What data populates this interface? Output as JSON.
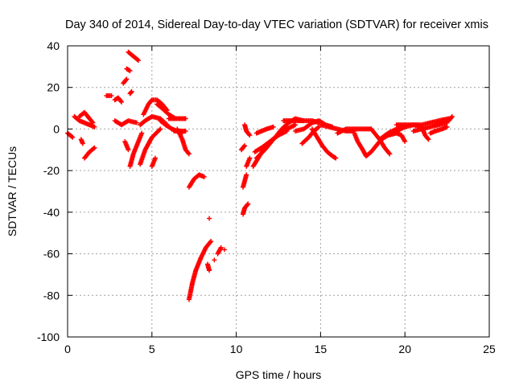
{
  "colors": {
    "series": "#ff0000",
    "grid": "#a0a0a0",
    "axis": "#000000"
  },
  "chart_data": {
    "type": "scatter",
    "title": "Day 340 of 2014, Sidereal Day-to-day VTEC variation (SDTVAR) for receiver xmis",
    "xlabel": "GPS time / hours",
    "ylabel": "SDTVAR / TECUs",
    "xlim": [
      0,
      25
    ],
    "ylim": [
      -100,
      40
    ],
    "xticks": [
      0,
      5,
      10,
      15,
      20,
      25
    ],
    "yticks": [
      -100,
      -80,
      -60,
      -40,
      -20,
      0,
      20,
      40
    ],
    "grid": true,
    "marker": "+",
    "series": [
      {
        "name": "SDTVAR",
        "arcs": [
          [
            [
              0.0,
              -2
            ],
            [
              0.15,
              -3
            ],
            [
              0.3,
              -4
            ]
          ],
          [
            [
              0.4,
              6
            ],
            [
              0.7,
              4
            ],
            [
              1.0,
              3
            ],
            [
              1.3,
              2
            ],
            [
              1.6,
              1
            ]
          ],
          [
            [
              0.7,
              6
            ],
            [
              1.0,
              8
            ],
            [
              1.2,
              6
            ],
            [
              1.5,
              3
            ]
          ],
          [
            [
              0.8,
              -5
            ],
            [
              0.9,
              -7
            ]
          ],
          [
            [
              1.0,
              -14
            ],
            [
              1.3,
              -11
            ],
            [
              1.6,
              -9
            ]
          ],
          [
            [
              2.3,
              16
            ],
            [
              2.6,
              16
            ]
          ],
          [
            [
              2.8,
              14
            ],
            [
              3.0,
              15
            ],
            [
              3.2,
              13
            ]
          ],
          [
            [
              2.8,
              4
            ],
            [
              3.2,
              2
            ],
            [
              3.6,
              4
            ],
            [
              4.1,
              3
            ]
          ],
          [
            [
              3.3,
              22
            ],
            [
              3.5,
              24
            ]
          ],
          [
            [
              3.5,
              29
            ],
            [
              3.7,
              28
            ]
          ],
          [
            [
              3.6,
              37
            ],
            [
              3.9,
              35
            ],
            [
              4.2,
              33
            ]
          ],
          [
            [
              3.7,
              17
            ],
            [
              3.8,
              18
            ]
          ],
          [
            [
              3.4,
              -6
            ],
            [
              3.6,
              -10
            ]
          ],
          [
            [
              3.7,
              -18
            ],
            [
              3.9,
              -12
            ],
            [
              4.2,
              -6
            ],
            [
              4.4,
              -2
            ]
          ],
          [
            [
              4.3,
              -17
            ],
            [
              4.6,
              -10
            ],
            [
              5.0,
              -4
            ],
            [
              5.5,
              0
            ]
          ],
          [
            [
              4.3,
              2
            ],
            [
              4.6,
              4
            ],
            [
              5.0,
              6
            ],
            [
              5.5,
              5
            ],
            [
              5.9,
              2
            ]
          ],
          [
            [
              4.5,
              7
            ],
            [
              4.8,
              12
            ],
            [
              5.0,
              14
            ],
            [
              5.3,
              14
            ],
            [
              5.6,
              12
            ],
            [
              5.9,
              9
            ]
          ],
          [
            [
              5.0,
              -18
            ],
            [
              5.2,
              -14
            ]
          ],
          [
            [
              5.3,
              12
            ],
            [
              5.6,
              10
            ],
            [
              6.0,
              7
            ],
            [
              6.4,
              5
            ]
          ],
          [
            [
              5.5,
              4
            ],
            [
              5.8,
              2
            ],
            [
              6.2,
              0
            ],
            [
              6.5,
              -1
            ],
            [
              6.8,
              -2
            ]
          ],
          [
            [
              6.0,
              5
            ],
            [
              6.4,
              5
            ],
            [
              6.8,
              5
            ],
            [
              7.0,
              5
            ]
          ],
          [
            [
              6.5,
              0
            ],
            [
              6.8,
              -5
            ],
            [
              7.0,
              -10
            ],
            [
              7.2,
              -12
            ]
          ],
          [
            [
              6.3,
              -1
            ],
            [
              6.6,
              -1
            ],
            [
              6.8,
              -1
            ],
            [
              7.0,
              -1
            ]
          ],
          [
            [
              7.2,
              -28
            ],
            [
              7.5,
              -24
            ],
            [
              7.8,
              -22
            ],
            [
              8.1,
              -23
            ]
          ],
          [
            [
              7.2,
              -82
            ],
            [
              7.4,
              -74
            ],
            [
              7.6,
              -68
            ],
            [
              7.9,
              -62
            ],
            [
              8.2,
              -57
            ],
            [
              8.5,
              -54
            ]
          ],
          [
            [
              8.3,
              -65
            ],
            [
              8.4,
              -68
            ]
          ],
          [
            [
              8.4,
              -43
            ]
          ],
          [
            [
              8.7,
              -63
            ]
          ],
          [
            [
              8.9,
              -60
            ],
            [
              9.1,
              -57
            ]
          ],
          [
            [
              9.3,
              -58
            ]
          ],
          [
            [
              10.3,
              -10
            ],
            [
              10.5,
              -8
            ]
          ],
          [
            [
              10.4,
              -41
            ],
            [
              10.5,
              -38
            ],
            [
              10.7,
              -36
            ]
          ],
          [
            [
              10.4,
              -28
            ],
            [
              10.6,
              -22
            ]
          ],
          [
            [
              10.5,
              2
            ],
            [
              10.6,
              -1
            ],
            [
              10.8,
              -3
            ]
          ],
          [
            [
              10.6,
              -18
            ],
            [
              10.8,
              -14
            ]
          ],
          [
            [
              11.0,
              -18
            ],
            [
              11.3,
              -14
            ],
            [
              11.6,
              -10
            ],
            [
              12.0,
              -6
            ],
            [
              12.5,
              -3
            ],
            [
              13.0,
              -1
            ]
          ],
          [
            [
              11.1,
              -11
            ],
            [
              11.5,
              -9
            ],
            [
              12.0,
              -6
            ],
            [
              12.5,
              -3
            ],
            [
              13.0,
              0
            ],
            [
              13.5,
              2
            ]
          ],
          [
            [
              11.2,
              -14
            ],
            [
              11.7,
              -10
            ],
            [
              12.2,
              -5
            ],
            [
              12.7,
              0
            ],
            [
              13.1,
              3
            ],
            [
              13.5,
              5
            ],
            [
              14.0,
              4
            ]
          ],
          [
            [
              11.2,
              -2
            ],
            [
              11.5,
              -1
            ],
            [
              11.8,
              0
            ],
            [
              12.2,
              1
            ]
          ],
          [
            [
              12.8,
              4
            ],
            [
              13.2,
              4
            ],
            [
              13.6,
              4
            ],
            [
              14.0,
              4
            ],
            [
              14.5,
              4
            ],
            [
              14.9,
              3
            ]
          ],
          [
            [
              13.5,
              -1
            ],
            [
              14.0,
              0
            ],
            [
              14.5,
              3
            ],
            [
              14.9,
              4
            ],
            [
              15.3,
              2
            ],
            [
              15.7,
              1
            ]
          ],
          [
            [
              13.9,
              -7
            ],
            [
              14.3,
              -4
            ],
            [
              14.6,
              -1
            ],
            [
              14.9,
              1
            ]
          ],
          [
            [
              14.5,
              0
            ],
            [
              14.8,
              -4
            ],
            [
              15.1,
              -8
            ],
            [
              15.4,
              -11
            ],
            [
              15.7,
              -13
            ],
            [
              15.9,
              -14
            ]
          ],
          [
            [
              15.0,
              2
            ],
            [
              15.5,
              1
            ],
            [
              16.0,
              0
            ],
            [
              16.5,
              -1
            ],
            [
              17.0,
              -1
            ]
          ],
          [
            [
              16.0,
              -2
            ],
            [
              16.5,
              0
            ],
            [
              17.0,
              0
            ],
            [
              17.5,
              0
            ],
            [
              18.0,
              0
            ]
          ],
          [
            [
              17.0,
              -2
            ],
            [
              17.2,
              -6
            ],
            [
              17.5,
              -10
            ],
            [
              17.7,
              -13
            ]
          ],
          [
            [
              17.7,
              -13
            ],
            [
              18.0,
              -11
            ],
            [
              18.3,
              -8
            ],
            [
              18.6,
              -5
            ],
            [
              19.0,
              -3
            ],
            [
              19.5,
              -1
            ],
            [
              20.0,
              1
            ]
          ],
          [
            [
              18.0,
              0
            ],
            [
              18.5,
              -5
            ],
            [
              18.8,
              -9
            ],
            [
              19.1,
              -12
            ]
          ],
          [
            [
              18.5,
              -5
            ],
            [
              19.0,
              -2
            ],
            [
              19.5,
              0
            ],
            [
              20.0,
              1
            ],
            [
              20.5,
              2
            ],
            [
              21.0,
              2
            ],
            [
              21.5,
              3
            ],
            [
              22.0,
              4
            ],
            [
              22.6,
              5
            ]
          ],
          [
            [
              19.0,
              -3
            ],
            [
              19.5,
              -2
            ],
            [
              19.8,
              -3
            ],
            [
              20.0,
              -6
            ]
          ],
          [
            [
              19.5,
              2
            ],
            [
              20.0,
              2
            ],
            [
              20.5,
              2
            ],
            [
              21.0,
              1
            ],
            [
              21.2,
              -3
            ],
            [
              21.4,
              -5
            ]
          ],
          [
            [
              20.5,
              -1
            ],
            [
              21.0,
              0
            ],
            [
              21.5,
              1
            ],
            [
              22.0,
              2
            ],
            [
              22.5,
              3
            ]
          ],
          [
            [
              21.5,
              -2
            ],
            [
              21.8,
              -1
            ],
            [
              22.2,
              0
            ],
            [
              22.5,
              1
            ]
          ],
          [
            [
              21.8,
              2
            ],
            [
              22.2,
              3
            ],
            [
              22.6,
              4
            ],
            [
              22.8,
              6
            ]
          ]
        ]
      }
    ]
  }
}
